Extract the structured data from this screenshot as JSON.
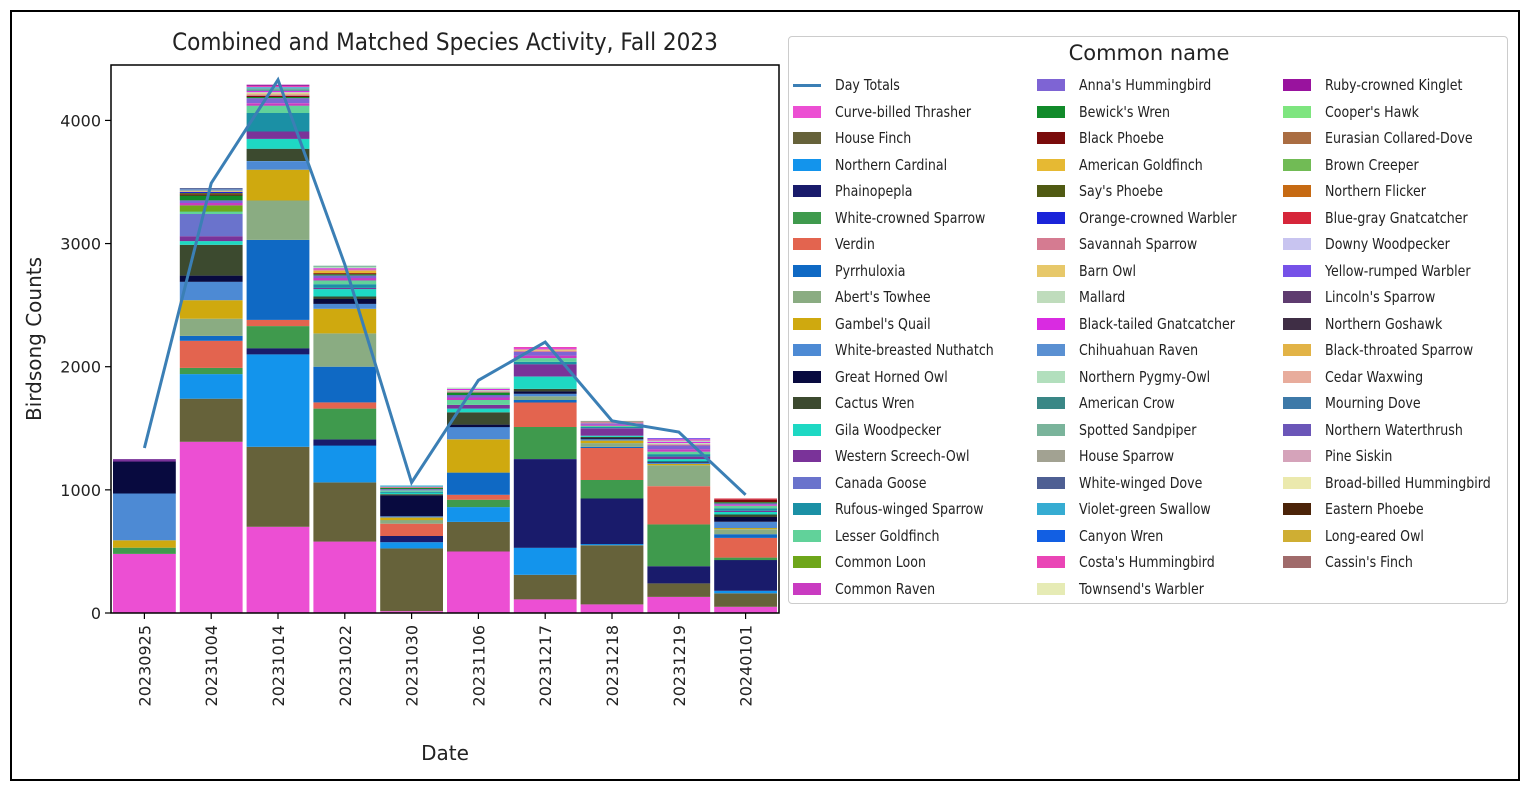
{
  "chart_data": {
    "type": "bar",
    "stacked": true,
    "title": "Combined and Matched Species Activity, Fall 2023",
    "xlabel": "Date",
    "ylabel": "Birdsong Counts",
    "ylim": [
      0,
      4450
    ],
    "yticks": [
      0,
      1000,
      2000,
      3000,
      4000
    ],
    "categories": [
      "20230925",
      "20231004",
      "20231014",
      "20231022",
      "20231030",
      "20231106",
      "20231217",
      "20231218",
      "20231219",
      "20240101"
    ],
    "line": {
      "name": "Day Totals",
      "color": "#3b7fb5",
      "values": [
        1340,
        3490,
        4330,
        2830,
        1060,
        1890,
        2200,
        1560,
        1470,
        960
      ]
    },
    "legend_title": "Common name",
    "legend_position": "outside-right",
    "series": [
      {
        "name": "Curve-billed Thrasher",
        "color": "#ec4fd3",
        "values": [
          480,
          1390,
          700,
          580,
          15,
          500,
          110,
          70,
          130,
          50
        ]
      },
      {
        "name": "House Finch",
        "color": "#66623a",
        "values": [
          0,
          350,
          650,
          480,
          510,
          240,
          200,
          480,
          110,
          110
        ]
      },
      {
        "name": "Northern Cardinal",
        "color": "#1394ec",
        "values": [
          0,
          200,
          750,
          300,
          50,
          120,
          220,
          10,
          0,
          20
        ]
      },
      {
        "name": "Phainopepla",
        "color": "#191b6b",
        "values": [
          0,
          0,
          50,
          50,
          50,
          0,
          720,
          370,
          140,
          250
        ]
      },
      {
        "name": "White-crowned Sparrow",
        "color": "#3f9a4d",
        "values": [
          50,
          50,
          180,
          250,
          0,
          60,
          260,
          150,
          340,
          20
        ]
      },
      {
        "name": "Verdin",
        "color": "#e3644f",
        "values": [
          0,
          220,
          50,
          50,
          100,
          40,
          200,
          260,
          310,
          160
        ]
      },
      {
        "name": "Pyrrhuloxia",
        "color": "#0f69c4",
        "values": [
          0,
          40,
          650,
          290,
          0,
          180,
          20,
          10,
          0,
          30
        ]
      },
      {
        "name": "Abert's Towhee",
        "color": "#8aac82",
        "values": [
          0,
          140,
          320,
          270,
          30,
          0,
          30,
          30,
          170,
          40
        ]
      },
      {
        "name": "Gambel's Quail",
        "color": "#cfa90f",
        "values": [
          60,
          150,
          250,
          200,
          20,
          270,
          0,
          20,
          10,
          10
        ]
      },
      {
        "name": "White-breasted Nuthatch",
        "color": "#4d8ad4",
        "values": [
          380,
          150,
          70,
          40,
          10,
          100,
          20,
          10,
          10,
          50
        ]
      },
      {
        "name": "Great Horned Owl",
        "color": "#080a3f",
        "values": [
          260,
          50,
          0,
          40,
          170,
          20,
          20,
          10,
          10,
          40
        ]
      },
      {
        "name": "Cactus Wren",
        "color": "#3c4a2f",
        "values": [
          0,
          250,
          100,
          20,
          10,
          100,
          20,
          10,
          0,
          20
        ]
      },
      {
        "name": "Gila Woodpecker",
        "color": "#1ed8c3",
        "values": [
          0,
          30,
          80,
          60,
          10,
          30,
          100,
          10,
          20,
          20
        ]
      },
      {
        "name": "Western Screech-Owl",
        "color": "#7a3399",
        "values": [
          20,
          40,
          60,
          10,
          0,
          30,
          100,
          60,
          20,
          10
        ]
      },
      {
        "name": "Canada Goose",
        "color": "#6a73cc",
        "values": [
          0,
          180,
          0,
          0,
          0,
          0,
          0,
          0,
          0,
          0
        ]
      },
      {
        "name": "Rufous-winged Sparrow",
        "color": "#1b90a5",
        "values": [
          0,
          0,
          150,
          30,
          10,
          0,
          20,
          10,
          20,
          20
        ]
      },
      {
        "name": "Lesser Goldfinch",
        "color": "#61d29a",
        "values": [
          0,
          20,
          60,
          30,
          10,
          40,
          30,
          10,
          20,
          20
        ]
      },
      {
        "name": "Common Loon",
        "color": "#6ea61a",
        "values": [
          0,
          50,
          0,
          0,
          0,
          0,
          0,
          0,
          0,
          0
        ]
      },
      {
        "name": "Common Raven",
        "color": "#c93bc1",
        "values": [
          0,
          20,
          20,
          20,
          0,
          20,
          20,
          10,
          20,
          10
        ]
      },
      {
        "name": "Anna's Hummingbird",
        "color": "#7e64d4",
        "values": [
          0,
          20,
          40,
          20,
          10,
          20,
          30,
          10,
          30,
          10
        ]
      },
      {
        "name": "Bewick's Wren",
        "color": "#118a2a",
        "values": [
          0,
          40,
          10,
          10,
          10,
          20,
          0,
          0,
          0,
          10
        ]
      },
      {
        "name": "Black Phoebe",
        "color": "#7a0b0b",
        "values": [
          0,
          10,
          10,
          10,
          0,
          0,
          0,
          0,
          0,
          20
        ]
      },
      {
        "name": "American Goldfinch",
        "color": "#e6b933",
        "values": [
          0,
          0,
          0,
          20,
          0,
          0,
          0,
          0,
          0,
          0
        ]
      },
      {
        "name": "Say's Phoebe",
        "color": "#505a13",
        "values": [
          0,
          10,
          0,
          0,
          0,
          0,
          0,
          0,
          0,
          0
        ]
      },
      {
        "name": "Orange-crowned Warbler",
        "color": "#1a24d9",
        "values": [
          0,
          10,
          0,
          0,
          0,
          0,
          0,
          0,
          0,
          0
        ]
      },
      {
        "name": "Savannah Sparrow",
        "color": "#d57b91",
        "values": [
          0,
          0,
          10,
          10,
          10,
          10,
          10,
          10,
          10,
          0
        ]
      },
      {
        "name": "Barn Owl",
        "color": "#e7c86a",
        "values": [
          0,
          10,
          10,
          0,
          0,
          0,
          10,
          0,
          0,
          0
        ]
      },
      {
        "name": "Mallard",
        "color": "#bfdcbc",
        "values": [
          0,
          0,
          10,
          0,
          0,
          10,
          0,
          0,
          10,
          0
        ]
      },
      {
        "name": "Black-tailed Gnatcatcher",
        "color": "#d92be1",
        "values": [
          0,
          0,
          10,
          10,
          0,
          10,
          10,
          0,
          10,
          0
        ]
      },
      {
        "name": "Chihuahuan Raven",
        "color": "#5a90d2",
        "values": [
          0,
          10,
          0,
          0,
          0,
          0,
          0,
          0,
          0,
          0
        ]
      },
      {
        "name": "Northern Pygmy-Owl",
        "color": "#b2dfbd",
        "values": [
          0,
          0,
          0,
          10,
          0,
          10,
          0,
          0,
          10,
          0
        ]
      },
      {
        "name": "American Crow",
        "color": "#3a8786",
        "values": [
          0,
          0,
          10,
          0,
          0,
          0,
          0,
          0,
          0,
          0
        ]
      },
      {
        "name": "Spotted Sandpiper",
        "color": "#7ab49b",
        "values": [
          0,
          0,
          10,
          10,
          0,
          0,
          0,
          0,
          0,
          0
        ]
      },
      {
        "name": "House Sparrow",
        "color": "#a2a292",
        "values": [
          0,
          0,
          0,
          0,
          0,
          0,
          0,
          10,
          0,
          0
        ]
      },
      {
        "name": "White-winged Dove",
        "color": "#4e5f93",
        "values": [
          0,
          10,
          0,
          0,
          0,
          0,
          0,
          0,
          0,
          0
        ]
      },
      {
        "name": "Violet-green Swallow",
        "color": "#36acd2",
        "values": [
          0,
          0,
          10,
          0,
          10,
          0,
          0,
          0,
          0,
          0
        ]
      },
      {
        "name": "Canyon Wren",
        "color": "#125fe3",
        "values": [
          0,
          0,
          0,
          0,
          0,
          0,
          0,
          0,
          0,
          0
        ]
      },
      {
        "name": "Costa's Hummingbird",
        "color": "#ea45b6",
        "values": [
          0,
          0,
          10,
          0,
          0,
          0,
          10,
          0,
          10,
          0
        ]
      },
      {
        "name": "Townsend's Warbler",
        "color": "#e6ebb5",
        "values": [
          0,
          0,
          0,
          0,
          0,
          0,
          0,
          0,
          0,
          0
        ]
      },
      {
        "name": "Ruby-crowned Kinglet",
        "color": "#99139e",
        "values": [
          0,
          0,
          10,
          0,
          0,
          0,
          0,
          0,
          0,
          0
        ]
      },
      {
        "name": "Cooper's Hawk",
        "color": "#7ee57f",
        "values": [
          0,
          0,
          0,
          0,
          0,
          0,
          0,
          0,
          0,
          0
        ]
      },
      {
        "name": "Eurasian Collared-Dove",
        "color": "#aa6d42",
        "values": [
          0,
          0,
          0,
          0,
          0,
          0,
          0,
          0,
          0,
          0
        ]
      },
      {
        "name": "Brown Creeper",
        "color": "#71bb55",
        "values": [
          0,
          0,
          0,
          0,
          0,
          0,
          0,
          0,
          0,
          0
        ]
      },
      {
        "name": "Northern Flicker",
        "color": "#c66a13",
        "values": [
          0,
          0,
          0,
          0,
          0,
          0,
          0,
          0,
          0,
          0
        ]
      },
      {
        "name": "Blue-gray Gnatcatcher",
        "color": "#d6263a",
        "values": [
          0,
          0,
          0,
          0,
          0,
          0,
          0,
          0,
          0,
          10
        ]
      },
      {
        "name": "Downy Woodpecker",
        "color": "#c8c4f0",
        "values": [
          0,
          0,
          0,
          0,
          0,
          0,
          0,
          0,
          0,
          0
        ]
      },
      {
        "name": "Yellow-rumped Warbler",
        "color": "#7652e8",
        "values": [
          0,
          0,
          0,
          0,
          0,
          0,
          0,
          0,
          10,
          0
        ]
      },
      {
        "name": "Lincoln's Sparrow",
        "color": "#5e3b6f",
        "values": [
          0,
          0,
          0,
          0,
          0,
          0,
          0,
          0,
          0,
          0
        ]
      },
      {
        "name": "Northern Goshawk",
        "color": "#3f2e45",
        "values": [
          0,
          0,
          0,
          0,
          0,
          0,
          0,
          0,
          0,
          0
        ]
      },
      {
        "name": "Black-throated Sparrow",
        "color": "#e2b346",
        "values": [
          0,
          0,
          0,
          0,
          0,
          0,
          0,
          0,
          0,
          0
        ]
      },
      {
        "name": "Cedar Waxwing",
        "color": "#e8ac9c",
        "values": [
          0,
          0,
          0,
          0,
          0,
          0,
          0,
          0,
          0,
          0
        ]
      },
      {
        "name": "Mourning Dove",
        "color": "#3d79a8",
        "values": [
          0,
          0,
          0,
          0,
          0,
          0,
          0,
          0,
          0,
          0
        ]
      },
      {
        "name": "Northern Waterthrush",
        "color": "#6b56b8",
        "values": [
          0,
          0,
          0,
          0,
          0,
          0,
          0,
          0,
          0,
          0
        ]
      },
      {
        "name": "Pine Siskin",
        "color": "#d5a3ba",
        "values": [
          0,
          0,
          0,
          0,
          0,
          0,
          0,
          0,
          0,
          0
        ]
      },
      {
        "name": "Broad-billed Hummingbird",
        "color": "#ebe9ad",
        "values": [
          0,
          0,
          0,
          0,
          0,
          0,
          0,
          0,
          0,
          0
        ]
      },
      {
        "name": "Eastern Phoebe",
        "color": "#4b2308",
        "values": [
          0,
          0,
          0,
          0,
          0,
          0,
          0,
          0,
          0,
          0
        ]
      },
      {
        "name": "Long-eared Owl",
        "color": "#cfae33",
        "values": [
          0,
          0,
          0,
          0,
          0,
          0,
          0,
          0,
          0,
          0
        ]
      },
      {
        "name": "Cassin's Finch",
        "color": "#a06b6b",
        "values": [
          0,
          0,
          0,
          0,
          0,
          0,
          0,
          0,
          0,
          0
        ]
      }
    ]
  }
}
